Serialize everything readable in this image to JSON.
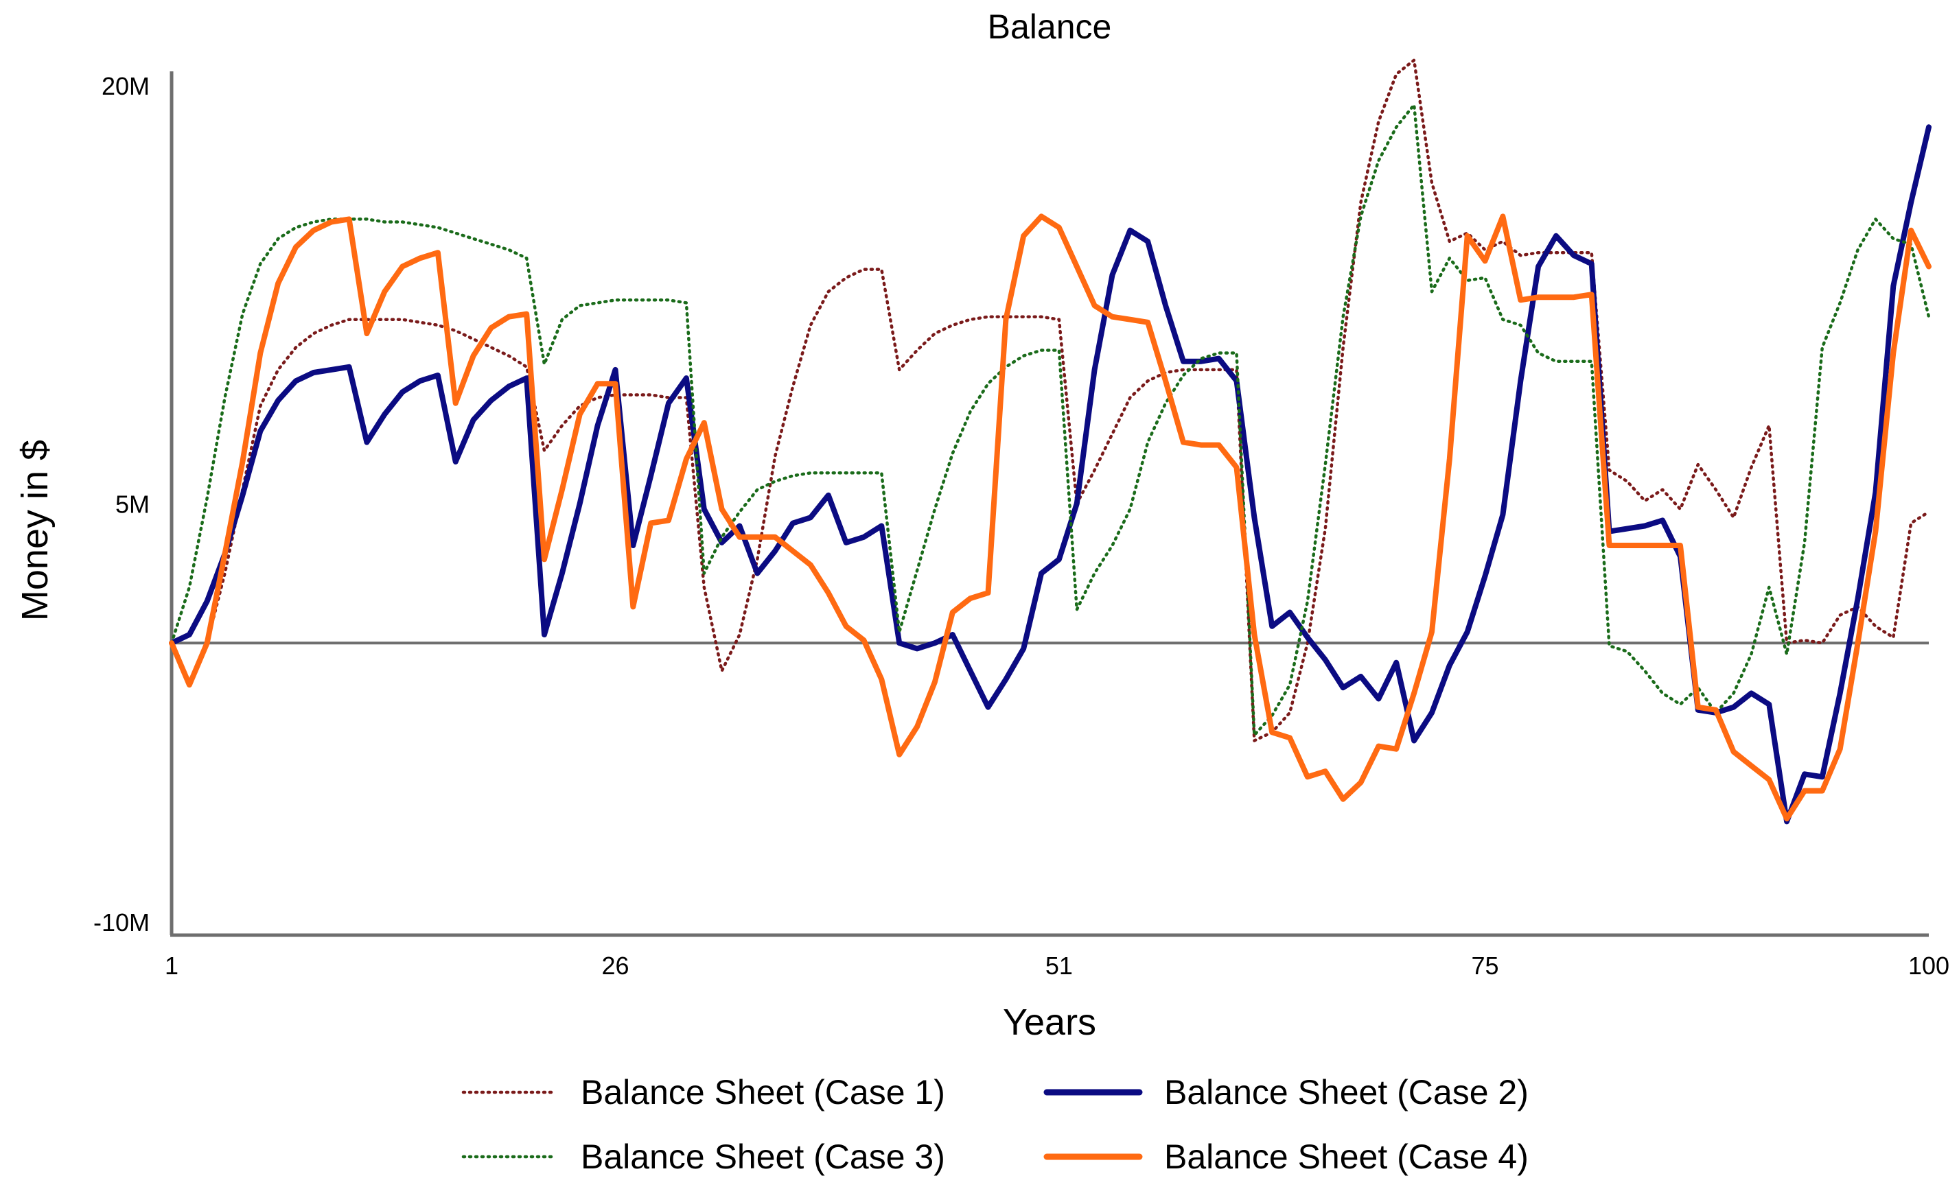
{
  "chart_data": {
    "type": "line",
    "title": "Balance",
    "xlabel": "Years",
    "ylabel": "Money in $",
    "xlim": [
      1,
      100
    ],
    "ylim": [
      -10.5,
      20.5
    ],
    "value_unit": "M",
    "x_ticks": [
      1,
      26,
      51,
      75,
      100
    ],
    "x_tick_labels": [
      "1",
      "26",
      "51",
      "75",
      "100"
    ],
    "y_ticks": [
      20,
      5,
      -10
    ],
    "y_tick_labels": [
      "20M",
      "5M",
      "-10M"
    ],
    "zero_line": 0,
    "grid": false,
    "legend_position": "bottom",
    "colors": {
      "axis": "#6e6e6e",
      "case1": "#7a1a1a",
      "case2": "#0b0b82",
      "case3": "#1a6b1a",
      "case4": "#ff6a12"
    },
    "series": [
      {
        "name": "Balance Sheet (Case 1)",
        "color_key": "case1",
        "style": "dotted",
        "x": [
          1,
          2,
          3,
          4,
          5,
          6,
          7,
          8,
          9,
          10,
          11,
          12,
          13,
          14,
          15,
          16,
          17,
          18,
          19,
          20,
          21,
          22,
          23,
          24,
          25,
          26,
          27,
          28,
          29,
          30,
          31,
          32,
          33,
          34,
          35,
          36,
          37,
          38,
          39,
          40,
          41,
          42,
          43,
          44,
          45,
          46,
          47,
          48,
          49,
          50,
          51,
          52,
          53,
          54,
          55,
          56,
          57,
          58,
          59,
          60,
          61,
          62,
          63,
          64,
          65,
          66,
          67,
          68,
          69,
          70,
          71,
          72,
          73,
          74,
          75,
          76,
          77,
          78,
          79,
          80,
          81,
          82,
          83,
          84,
          85,
          86,
          87,
          88,
          89,
          90,
          91,
          92,
          93,
          94,
          95,
          96,
          97,
          98,
          99,
          100
        ],
        "values": [
          0,
          -1.5,
          0,
          2.5,
          5.5,
          8.5,
          9.8,
          10.6,
          11.1,
          11.4,
          11.6,
          11.6,
          11.6,
          11.6,
          11.5,
          11.4,
          11.2,
          10.9,
          10.6,
          10.3,
          9.9,
          6.9,
          7.8,
          8.5,
          8.8,
          8.9,
          8.9,
          8.9,
          8.8,
          8.8,
          2,
          -1,
          0.3,
          3,
          6.7,
          9.2,
          11.4,
          12.6,
          13.1,
          13.4,
          13.4,
          9.8,
          10.5,
          11.1,
          11.4,
          11.6,
          11.7,
          11.7,
          11.7,
          11.7,
          11.6,
          5,
          6.2,
          7.5,
          8.8,
          9.4,
          9.7,
          9.8,
          9.8,
          9.8,
          9.8,
          -3.5,
          -3.2,
          -2.5,
          0,
          4.1,
          10.6,
          15.8,
          18.7,
          20.4,
          20.9,
          16.5,
          14.4,
          14.7,
          14.1,
          14.4,
          13.9,
          14,
          14,
          14,
          14,
          6.2,
          5.8,
          5.1,
          5.5,
          4.8,
          6.4,
          5.5,
          4.5,
          6.3,
          7.8,
          0,
          0.1,
          0,
          1,
          1.3,
          0.6,
          0.2,
          4.3,
          4.7
        ]
      },
      {
        "name": "Balance Sheet (Case 2)",
        "color_key": "case2",
        "style": "solid",
        "x": [
          1,
          2,
          3,
          4,
          5,
          6,
          7,
          8,
          9,
          10,
          11,
          12,
          13,
          14,
          15,
          16,
          17,
          18,
          19,
          20,
          21,
          22,
          23,
          24,
          25,
          26,
          27,
          28,
          29,
          30,
          31,
          32,
          33,
          34,
          35,
          36,
          37,
          38,
          39,
          40,
          41,
          42,
          43,
          44,
          45,
          46,
          47,
          48,
          49,
          50,
          51,
          52,
          53,
          54,
          55,
          56,
          57,
          58,
          59,
          60,
          61,
          62,
          63,
          64,
          65,
          66,
          67,
          68,
          69,
          70,
          71,
          72,
          73,
          74,
          75,
          76,
          77,
          78,
          79,
          80,
          81,
          82,
          83,
          84,
          85,
          86,
          87,
          88,
          89,
          90,
          91,
          92,
          93,
          94,
          95,
          96,
          97,
          98,
          99,
          100
        ],
        "values": [
          0,
          0.3,
          1.5,
          3.2,
          5.3,
          7.6,
          8.7,
          9.4,
          9.7,
          9.8,
          9.9,
          7.2,
          8.2,
          9,
          9.4,
          9.6,
          6.5,
          8,
          8.7,
          9.2,
          9.5,
          0.3,
          2.5,
          5,
          7.8,
          9.8,
          3.5,
          6,
          8.6,
          9.5,
          4.8,
          3.6,
          4.2,
          2.5,
          3.3,
          4.3,
          4.5,
          5.3,
          3.6,
          3.8,
          4.2,
          0,
          -0.2,
          0,
          0.3,
          -1,
          -2.3,
          -1.3,
          -0.2,
          2.5,
          3,
          5,
          9.8,
          13.2,
          14.8,
          14.4,
          12.1,
          10.1,
          10.1,
          10.2,
          9.4,
          4.5,
          0.6,
          1.1,
          0.2,
          -0.6,
          -1.6,
          -1.2,
          -2,
          -0.7,
          -3.5,
          -2.5,
          -0.8,
          0.4,
          2.4,
          4.6,
          9.4,
          13.5,
          14.6,
          13.9,
          13.6,
          4,
          4.1,
          4.2,
          4.4,
          3.1,
          -2.4,
          -2.5,
          -2.3,
          -1.8,
          -2.2,
          -6.4,
          -4.7,
          -4.8,
          -1.8,
          1.6,
          5.4,
          12.8,
          15.8,
          18.5
        ]
      },
      {
        "name": "Balance Sheet (Case 3)",
        "color_key": "case3",
        "style": "dotted",
        "x": [
          1,
          2,
          3,
          4,
          5,
          6,
          7,
          8,
          9,
          10,
          11,
          12,
          13,
          14,
          15,
          16,
          17,
          18,
          19,
          20,
          21,
          22,
          23,
          24,
          25,
          26,
          27,
          28,
          29,
          30,
          31,
          32,
          33,
          34,
          35,
          36,
          37,
          38,
          39,
          40,
          41,
          42,
          43,
          44,
          45,
          46,
          47,
          48,
          49,
          50,
          51,
          52,
          53,
          54,
          55,
          56,
          57,
          58,
          59,
          60,
          61,
          62,
          63,
          64,
          65,
          66,
          67,
          68,
          69,
          70,
          71,
          72,
          73,
          74,
          75,
          76,
          77,
          78,
          79,
          80,
          81,
          82,
          83,
          84,
          85,
          86,
          87,
          88,
          89,
          90,
          91,
          92,
          93,
          94,
          95,
          96,
          97,
          98,
          99,
          100
        ],
        "values": [
          0,
          2,
          5.2,
          8.8,
          11.8,
          13.6,
          14.5,
          14.9,
          15.1,
          15.2,
          15.2,
          15.2,
          15.1,
          15.1,
          15,
          14.9,
          14.7,
          14.5,
          14.3,
          14.1,
          13.8,
          10,
          11.6,
          12.1,
          12.2,
          12.3,
          12.3,
          12.3,
          12.3,
          12.2,
          2.5,
          3.8,
          4.7,
          5.5,
          5.8,
          6,
          6.1,
          6.1,
          6.1,
          6.1,
          6.1,
          0.4,
          2.6,
          4.8,
          6.8,
          8.3,
          9.3,
          9.9,
          10.3,
          10.5,
          10.5,
          1.2,
          2.5,
          3.5,
          4.8,
          7.2,
          8.6,
          9.6,
          10.2,
          10.4,
          10.4,
          -3.3,
          -2.6,
          -1.5,
          1.5,
          6.4,
          11.7,
          15.3,
          17.3,
          18.5,
          19.3,
          12.6,
          13.8,
          13,
          13.1,
          11.6,
          11.4,
          10.4,
          10.1,
          10.1,
          10.1,
          -0.1,
          -0.3,
          -1,
          -1.8,
          -2.2,
          -1.6,
          -2.5,
          -1.8,
          -0.4,
          2,
          -0.4,
          3.6,
          10.6,
          12.2,
          14.1,
          15.2,
          14.5,
          14.3,
          11.7
        ]
      },
      {
        "name": "Balance Sheet (Case 4)",
        "color_key": "case4",
        "style": "solid",
        "x": [
          1,
          2,
          3,
          4,
          5,
          6,
          7,
          8,
          9,
          10,
          11,
          12,
          13,
          14,
          15,
          16,
          17,
          18,
          19,
          20,
          21,
          22,
          23,
          24,
          25,
          26,
          27,
          28,
          29,
          30,
          31,
          32,
          33,
          34,
          35,
          36,
          37,
          38,
          39,
          40,
          41,
          42,
          43,
          44,
          45,
          46,
          47,
          48,
          49,
          50,
          51,
          52,
          53,
          54,
          55,
          56,
          57,
          58,
          59,
          60,
          61,
          62,
          63,
          64,
          65,
          66,
          67,
          68,
          69,
          70,
          71,
          72,
          73,
          74,
          75,
          76,
          77,
          78,
          79,
          80,
          81,
          82,
          83,
          84,
          85,
          86,
          87,
          88,
          89,
          90,
          91,
          92,
          93,
          94,
          95,
          96,
          97,
          98,
          99,
          100
        ],
        "values": [
          0,
          -1.5,
          0,
          3.2,
          6.5,
          10.4,
          12.9,
          14.2,
          14.8,
          15.1,
          15.2,
          11.1,
          12.6,
          13.5,
          13.8,
          14,
          8.6,
          10.3,
          11.3,
          11.7,
          11.8,
          3,
          5.5,
          8.2,
          9.3,
          9.3,
          1.3,
          4.3,
          4.4,
          6.6,
          7.9,
          4.8,
          3.8,
          3.8,
          3.8,
          3.3,
          2.8,
          1.8,
          0.6,
          0.1,
          -1.3,
          -4,
          -3,
          -1.4,
          1.1,
          1.6,
          1.8,
          11.6,
          14.6,
          15.3,
          14.9,
          13.5,
          12.1,
          11.7,
          11.6,
          11.5,
          9.4,
          7.2,
          7.1,
          7.1,
          6.3,
          0.3,
          -3.2,
          -3.4,
          -4.8,
          -4.6,
          -5.6,
          -5,
          -3.7,
          -3.8,
          -1.8,
          0.4,
          6.6,
          14.6,
          13.7,
          15.3,
          12.3,
          12.4,
          12.4,
          12.4,
          12.5,
          3.5,
          3.5,
          3.5,
          3.5,
          3.5,
          -2.3,
          -2.4,
          -3.9,
          -4.4,
          -4.9,
          -6.3,
          -5.3,
          -5.3,
          -3.8,
          0,
          4,
          10.4,
          14.8,
          13.5
        ]
      }
    ]
  }
}
